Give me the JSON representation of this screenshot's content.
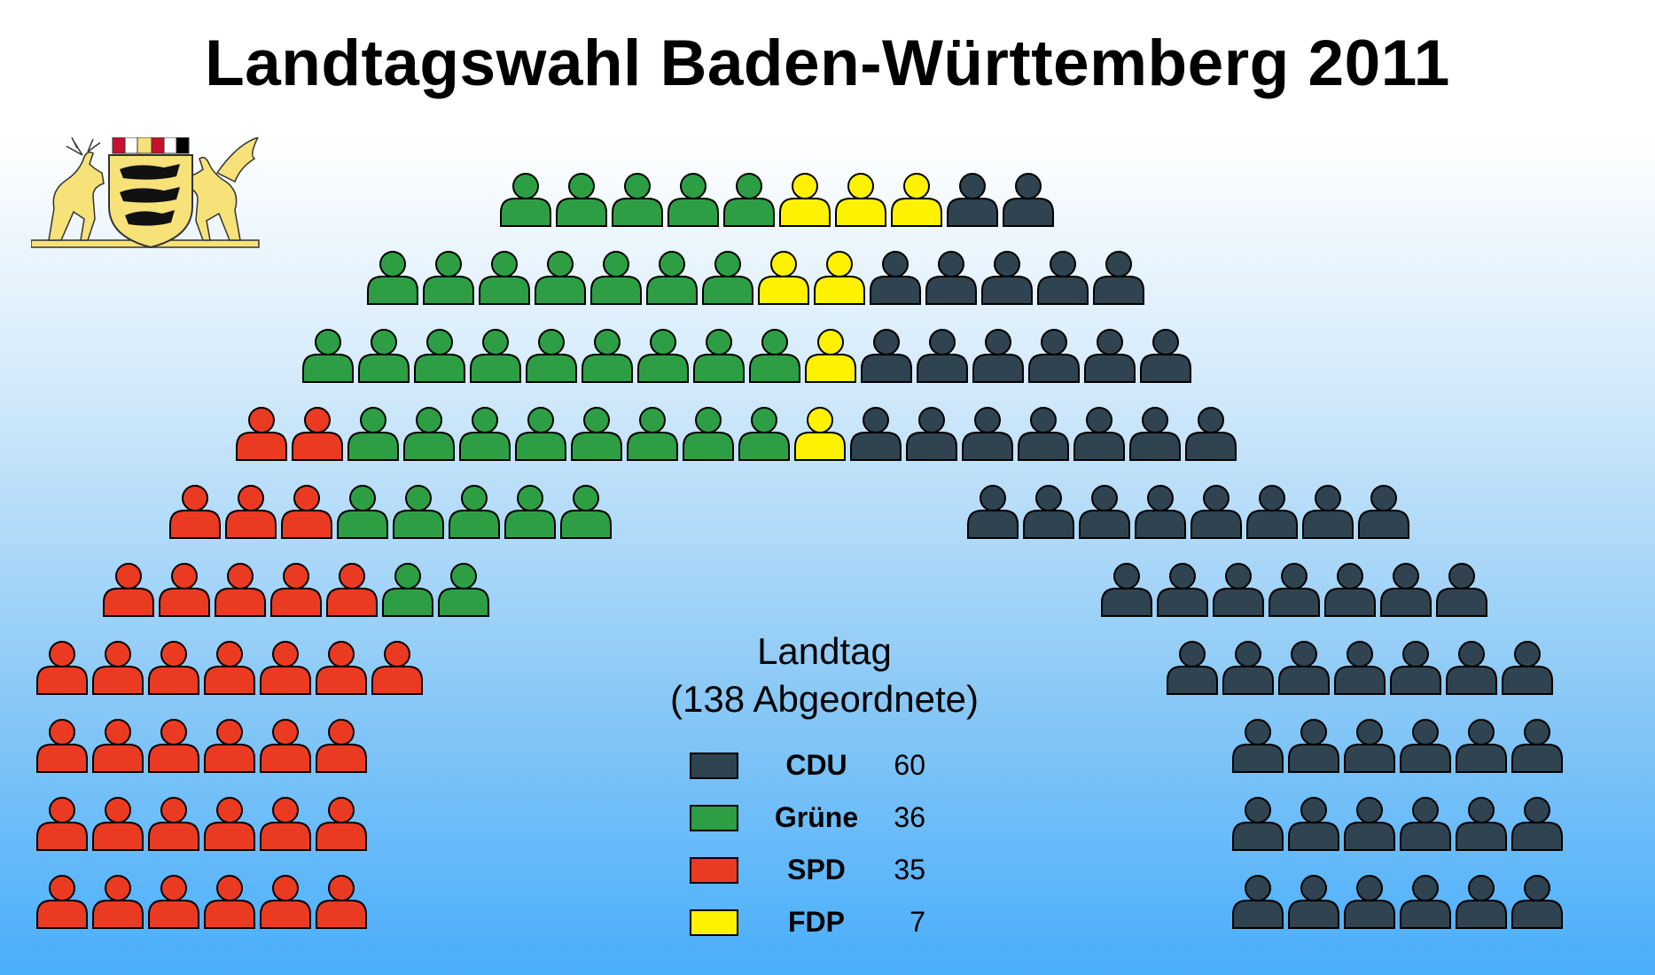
{
  "title": "Landtagswahl Baden-Württemberg 2011",
  "chamber": {
    "name": "Landtag",
    "total_label": "(138 Abgeordnete)"
  },
  "chart_data": {
    "type": "parliament",
    "total": 138,
    "series": [
      {
        "name": "CDU",
        "value": 60,
        "color": "#2f4350"
      },
      {
        "name": "Grüne",
        "value": 36,
        "color": "#2e9e45"
      },
      {
        "name": "SPD",
        "value": 35,
        "color": "#ea3b22"
      },
      {
        "name": "FDP",
        "value": 7,
        "color": "#fff200"
      }
    ],
    "rows_top_to_bottom": [
      [
        "Grüne",
        "Grüne",
        "Grüne",
        "Grüne",
        "Grüne",
        "FDP",
        "FDP",
        "FDP",
        "CDU",
        "CDU"
      ],
      [
        "Grüne",
        "Grüne",
        "Grüne",
        "Grüne",
        "Grüne",
        "Grüne",
        "Grüne",
        "FDP",
        "FDP",
        "CDU",
        "CDU",
        "CDU",
        "CDU",
        "CDU"
      ],
      [
        "Grüne",
        "Grüne",
        "Grüne",
        "Grüne",
        "Grüne",
        "Grüne",
        "Grüne",
        "Grüne",
        "Grüne",
        "FDP",
        "CDU",
        "CDU",
        "CDU",
        "CDU",
        "CDU",
        "CDU"
      ],
      [
        "SPD",
        "SPD",
        "Grüne",
        "Grüne",
        "Grüne",
        "Grüne",
        "Grüne",
        "Grüne",
        "Grüne",
        "Grüne",
        "FDP",
        "CDU",
        "CDU",
        "CDU",
        "CDU",
        "CDU",
        "CDU",
        "CDU"
      ],
      [
        "SPD",
        "SPD",
        "SPD",
        "Grüne",
        "Grüne",
        "Grüne",
        "Grüne",
        "Grüne",
        "CDU",
        "CDU",
        "CDU",
        "CDU",
        "CDU",
        "CDU",
        "CDU",
        "CDU"
      ],
      [
        "SPD",
        "SPD",
        "SPD",
        "SPD",
        "SPD",
        "Grüne",
        "Grüne",
        "CDU",
        "CDU",
        "CDU",
        "CDU",
        "CDU",
        "CDU",
        "CDU"
      ],
      [
        "SPD",
        "SPD",
        "SPD",
        "SPD",
        "SPD",
        "SPD",
        "SPD",
        "CDU",
        "CDU",
        "CDU",
        "CDU",
        "CDU",
        "CDU",
        "CDU"
      ],
      [
        "SPD",
        "SPD",
        "SPD",
        "SPD",
        "SPD",
        "SPD",
        "CDU",
        "CDU",
        "CDU",
        "CDU",
        "CDU",
        "CDU"
      ],
      [
        "SPD",
        "SPD",
        "SPD",
        "SPD",
        "SPD",
        "SPD",
        "CDU",
        "CDU",
        "CDU",
        "CDU",
        "CDU",
        "CDU"
      ],
      [
        "SPD",
        "SPD",
        "SPD",
        "SPD",
        "SPD",
        "SPD",
        "CDU",
        "CDU",
        "CDU",
        "CDU",
        "CDU",
        "CDU"
      ]
    ]
  },
  "coat_of_arms": {
    "icon": "baden-wuerttemberg-coat-of-arms-icon",
    "gold": "#f7e27a"
  }
}
